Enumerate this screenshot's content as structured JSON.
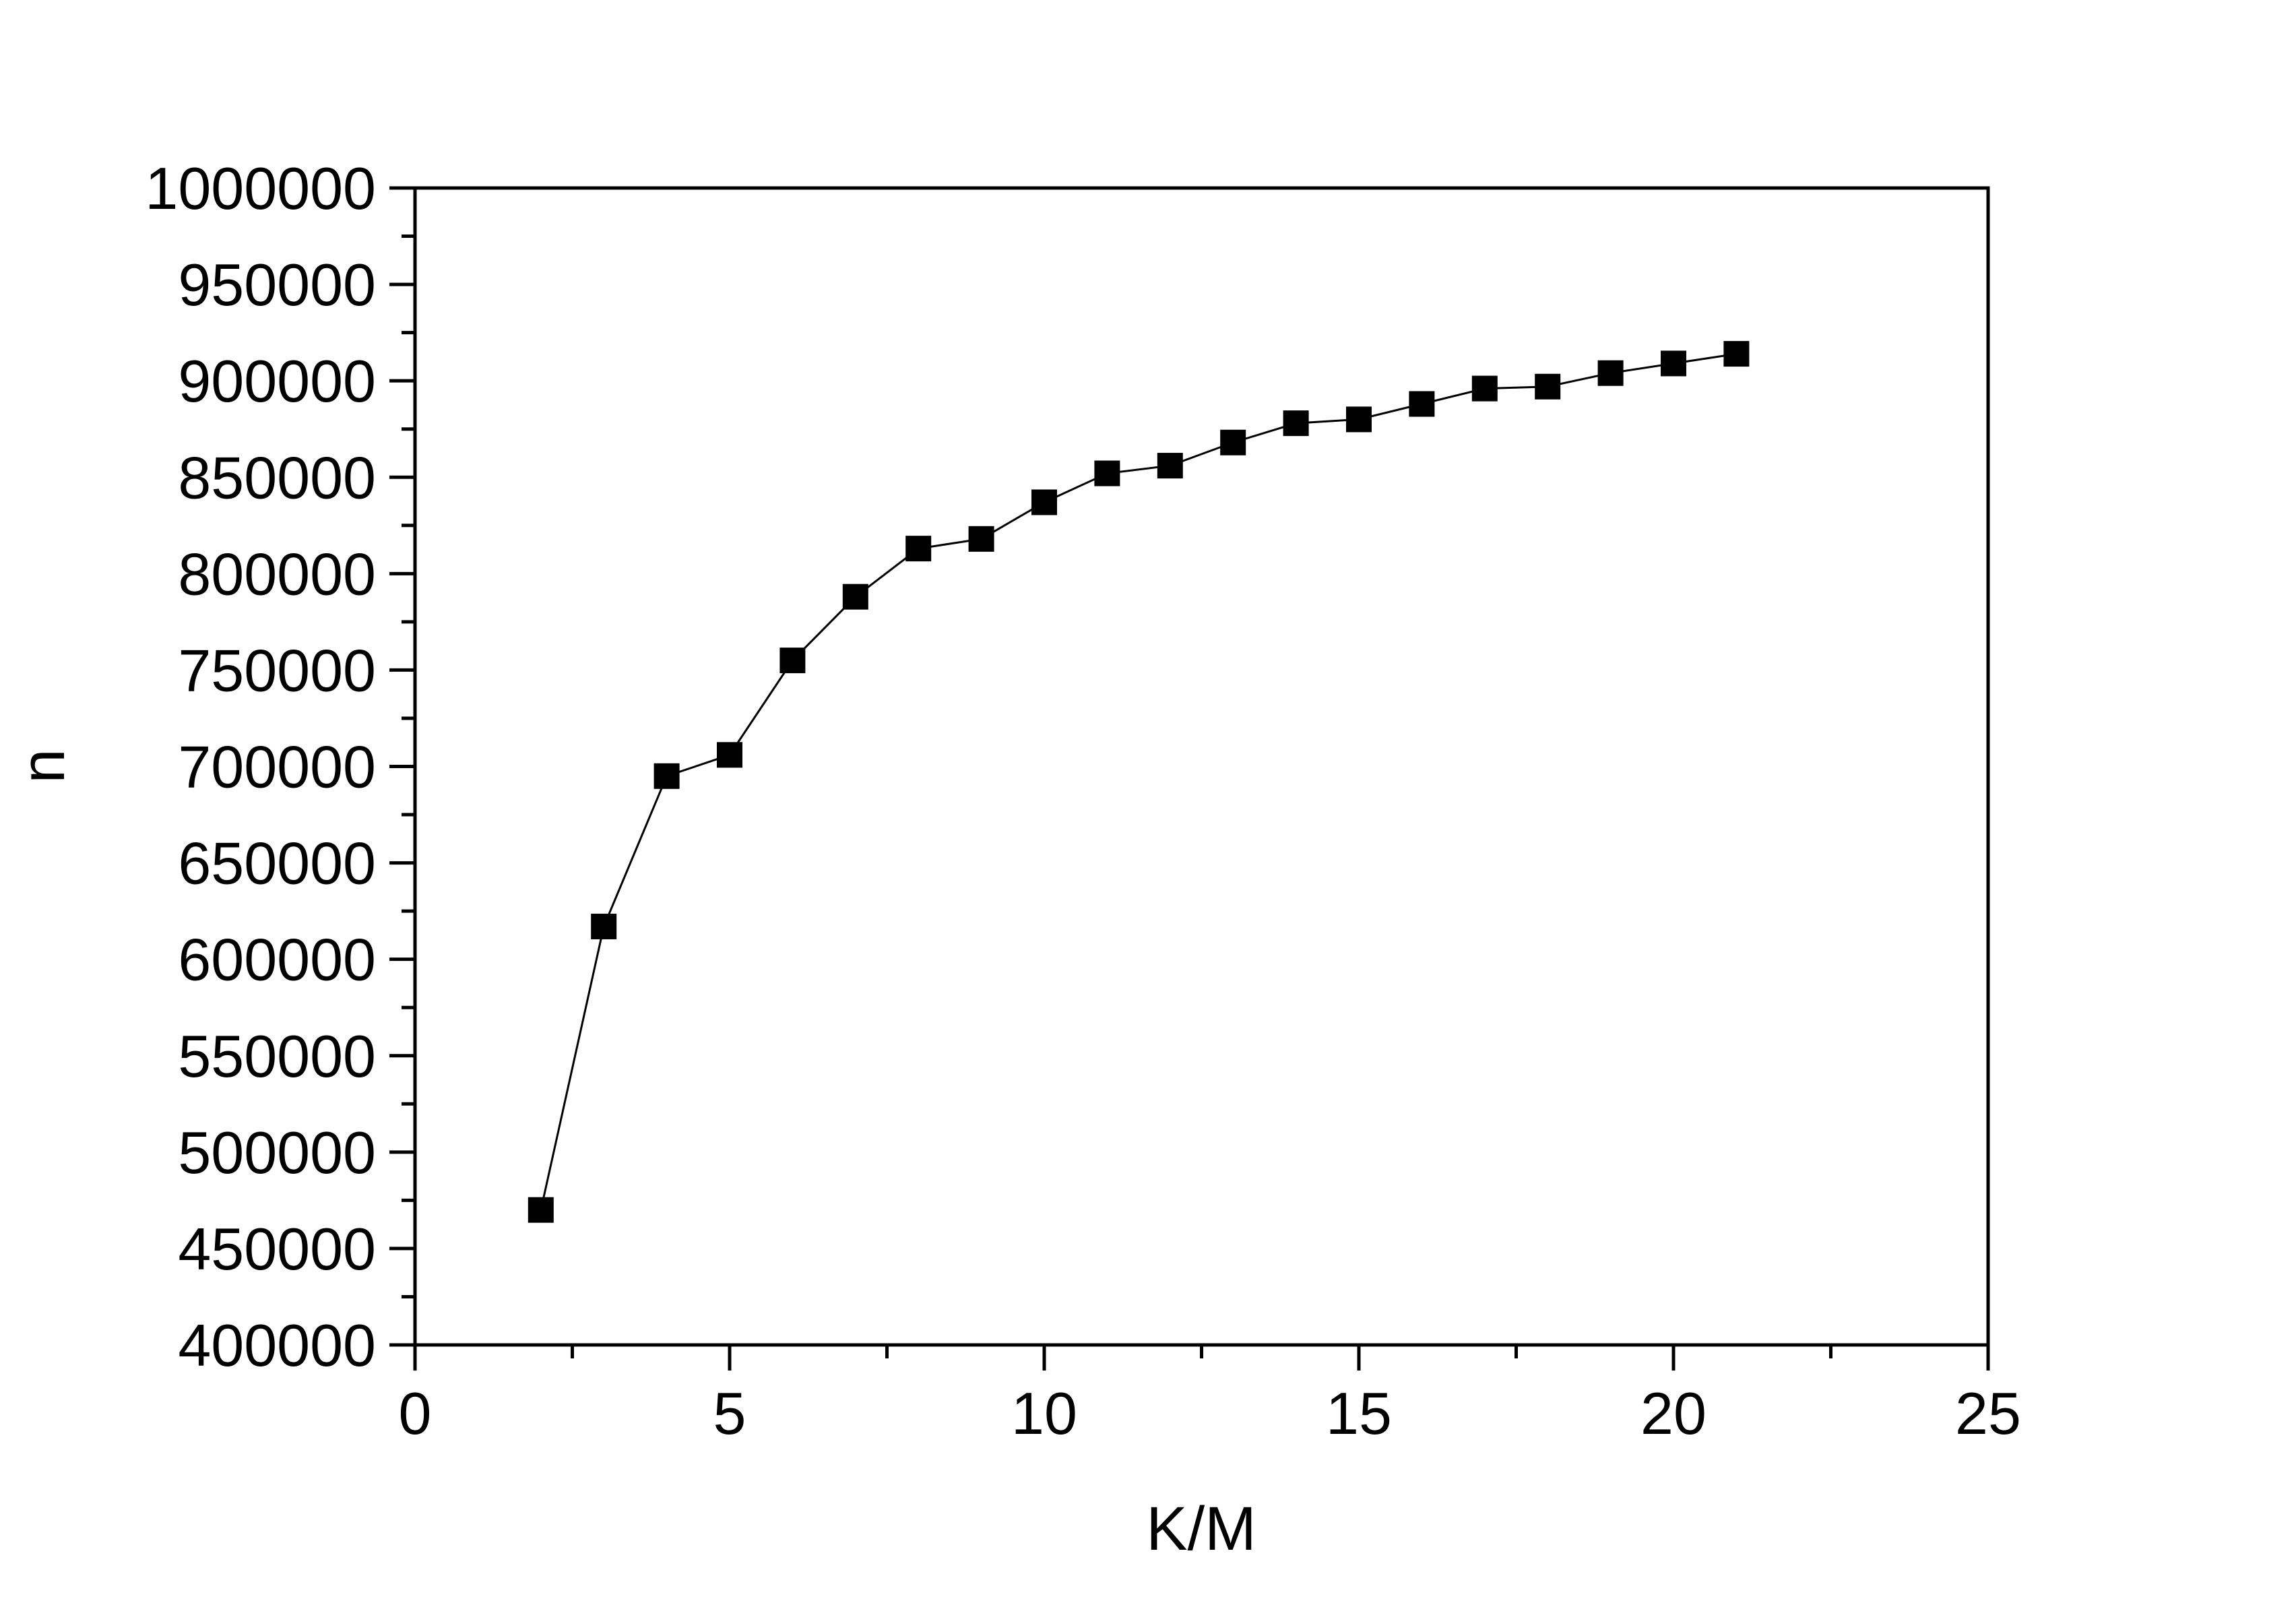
{
  "chart_data": {
    "type": "line",
    "title": "",
    "xlabel": "K/M",
    "ylabel": "n",
    "xlim": [
      0,
      25
    ],
    "ylim": [
      400000,
      1000000
    ],
    "x_ticks": [
      0,
      5,
      10,
      15,
      20,
      25
    ],
    "x_tick_labels": [
      "0",
      "5",
      "10",
      "15",
      "20",
      "25"
    ],
    "y_ticks": [
      400000,
      450000,
      500000,
      550000,
      600000,
      650000,
      700000,
      750000,
      800000,
      850000,
      900000,
      950000,
      1000000
    ],
    "y_tick_labels": [
      "400000",
      "450000",
      "500000",
      "550000",
      "600000",
      "650000",
      "700000",
      "750000",
      "800000",
      "850000",
      "900000",
      "950000",
      "1000000"
    ],
    "grid": false,
    "marker": "square",
    "series": [
      {
        "x": [
          2,
          3,
          4,
          5,
          6,
          7,
          8,
          9,
          10,
          11,
          12,
          13,
          14,
          15,
          16,
          17,
          18,
          19,
          20,
          21
        ],
        "y": [
          470000,
          617000,
          695000,
          706000,
          755000,
          788000,
          813000,
          818000,
          837000,
          852000,
          856000,
          868000,
          878000,
          880000,
          888000,
          896000,
          897000,
          904000,
          909000,
          914000
        ],
        "color": "#000000"
      }
    ]
  }
}
